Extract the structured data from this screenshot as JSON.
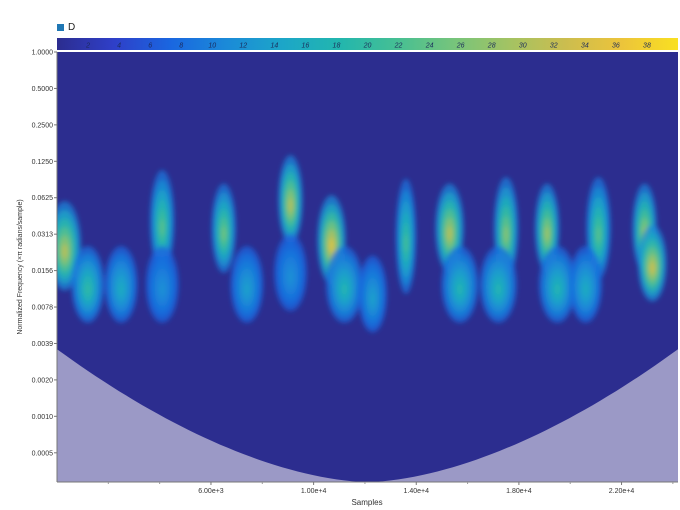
{
  "legend": {
    "label": "D",
    "color": "#1f77b4"
  },
  "colorbar": {
    "ticks": [
      "2",
      "4",
      "6",
      "8",
      "10",
      "12",
      "14",
      "16",
      "18",
      "20",
      "22",
      "24",
      "26",
      "28",
      "30",
      "32",
      "34",
      "36",
      "38"
    ],
    "range": [
      0,
      40
    ],
    "colormap": [
      "#2c2d8f",
      "#2f3fc8",
      "#1a66e0",
      "#1b8ad8",
      "#1ca6c8",
      "#22b6ae",
      "#45bf94",
      "#75c47c",
      "#a3c363",
      "#cbbd4f",
      "#ecc43b",
      "#f9e021"
    ]
  },
  "chart_data": {
    "type": "heatmap",
    "title": "",
    "xlabel": "Samples",
    "ylabel": "Normalized Frequency (×π radians/sample)",
    "xlim": [
      0,
      24200
    ],
    "x_ticks": [
      {
        "value": 6000,
        "label": "6.00e+3"
      },
      {
        "value": 10000,
        "label": "1.00e+4"
      },
      {
        "value": 14000,
        "label": "1.40e+4"
      },
      {
        "value": 18000,
        "label": "1.80e+4"
      },
      {
        "value": 22000,
        "label": "2.20e+4"
      }
    ],
    "y_scale": "log",
    "ylim": [
      0.00028,
      1.0
    ],
    "y_ticks": [
      "1.0000",
      "0.5000",
      "0.2500",
      "0.1250",
      "0.0625",
      "0.0313",
      "0.0156",
      "0.0078",
      "0.0039",
      "0.0020",
      "0.0010",
      "0.0005"
    ],
    "y_tick_values": [
      1.0,
      0.5,
      0.25,
      0.125,
      0.0625,
      0.03125,
      0.015625,
      0.0078125,
      0.00390625,
      0.001953,
      0.000977,
      0.000488
    ],
    "cone_of_influence": {
      "min_frequency_at_center": 0.00028,
      "frequency_at_edges": 0.0035,
      "color": "#9b99c6"
    },
    "hotspots": [
      {
        "x": 300,
        "y": 0.025,
        "value": 32,
        "sx": 400,
        "sy": 0.35
      },
      {
        "x": 1200,
        "y": 0.012,
        "value": 20,
        "sx": 400,
        "sy": 0.3
      },
      {
        "x": 2500,
        "y": 0.012,
        "value": 16,
        "sx": 400,
        "sy": 0.3
      },
      {
        "x": 4100,
        "y": 0.04,
        "value": 24,
        "sx": 300,
        "sy": 0.4
      },
      {
        "x": 4100,
        "y": 0.012,
        "value": 12,
        "sx": 400,
        "sy": 0.3
      },
      {
        "x": 6500,
        "y": 0.035,
        "value": 26,
        "sx": 300,
        "sy": 0.35
      },
      {
        "x": 7400,
        "y": 0.012,
        "value": 14,
        "sx": 400,
        "sy": 0.3
      },
      {
        "x": 9100,
        "y": 0.06,
        "value": 32,
        "sx": 300,
        "sy": 0.35
      },
      {
        "x": 9100,
        "y": 0.015,
        "value": 12,
        "sx": 400,
        "sy": 0.3
      },
      {
        "x": 10700,
        "y": 0.028,
        "value": 36,
        "sx": 350,
        "sy": 0.35
      },
      {
        "x": 11200,
        "y": 0.012,
        "value": 18,
        "sx": 450,
        "sy": 0.3
      },
      {
        "x": 12300,
        "y": 0.01,
        "value": 14,
        "sx": 350,
        "sy": 0.3
      },
      {
        "x": 13600,
        "y": 0.03,
        "value": 22,
        "sx": 250,
        "sy": 0.45
      },
      {
        "x": 15300,
        "y": 0.035,
        "value": 32,
        "sx": 350,
        "sy": 0.35
      },
      {
        "x": 15700,
        "y": 0.012,
        "value": 18,
        "sx": 450,
        "sy": 0.3
      },
      {
        "x": 17500,
        "y": 0.035,
        "value": 28,
        "sx": 300,
        "sy": 0.4
      },
      {
        "x": 17200,
        "y": 0.012,
        "value": 18,
        "sx": 450,
        "sy": 0.3
      },
      {
        "x": 19100,
        "y": 0.035,
        "value": 30,
        "sx": 300,
        "sy": 0.35
      },
      {
        "x": 19500,
        "y": 0.012,
        "value": 18,
        "sx": 450,
        "sy": 0.3
      },
      {
        "x": 21100,
        "y": 0.035,
        "value": 24,
        "sx": 300,
        "sy": 0.4
      },
      {
        "x": 20600,
        "y": 0.012,
        "value": 16,
        "sx": 400,
        "sy": 0.3
      },
      {
        "x": 22900,
        "y": 0.035,
        "value": 30,
        "sx": 300,
        "sy": 0.35
      },
      {
        "x": 23200,
        "y": 0.018,
        "value": 34,
        "sx": 350,
        "sy": 0.3
      }
    ]
  }
}
